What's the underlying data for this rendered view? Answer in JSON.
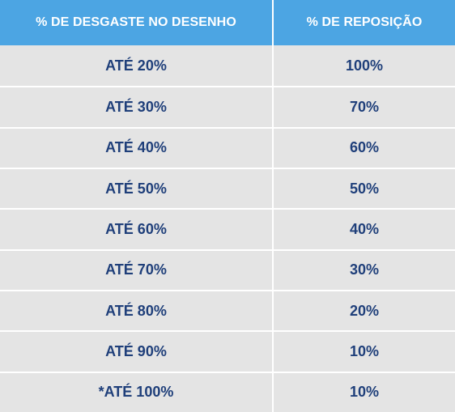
{
  "table": {
    "headers": [
      "% DE DESGASTE NO DESENHO",
      "% DE REPOSIÇÃO"
    ],
    "rows": [
      [
        "ATÉ 20%",
        "100%"
      ],
      [
        "ATÉ 30%",
        "70%"
      ],
      [
        "ATÉ 40%",
        "60%"
      ],
      [
        "ATÉ 50%",
        "50%"
      ],
      [
        "ATÉ 60%",
        "40%"
      ],
      [
        "ATÉ 70%",
        "30%"
      ],
      [
        "ATÉ 80%",
        "20%"
      ],
      [
        "ATÉ 90%",
        "10%"
      ],
      [
        "*ATÉ 100%",
        "10%"
      ]
    ]
  },
  "colors": {
    "header_bg": "#4ca5e3",
    "header_text": "#ffffff",
    "row_bg": "#e4e4e4",
    "cell_text": "#1f3f7a",
    "divider": "#ffffff"
  }
}
